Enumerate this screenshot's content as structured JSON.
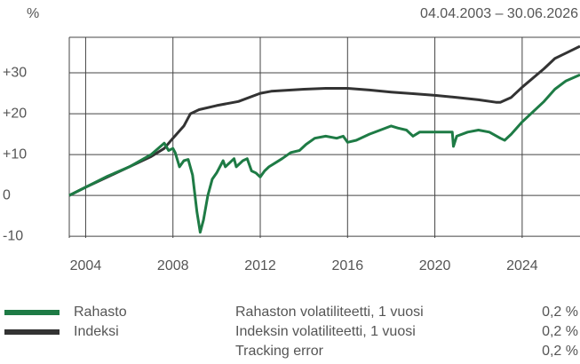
{
  "chart_data": {
    "type": "line",
    "unit_label": "%",
    "date_range": "04.04.2003 – 30.06.2026",
    "xlim": [
      2003.25,
      2026.65
    ],
    "xticks": [
      2004,
      2008,
      2012,
      2016,
      2020,
      2024
    ],
    "ylim": [
      -10.4,
      38.7
    ],
    "yticks": [
      {
        "value": 30,
        "label": "+30"
      },
      {
        "value": 20,
        "label": "+20"
      },
      {
        "value": 10,
        "label": "+10"
      },
      0,
      -10
    ],
    "grid": true,
    "series": [
      {
        "name": "Rahasto",
        "color": "#1e7b45",
        "x": [
          2003.25,
          2004,
          2005,
          2006,
          2007,
          2007.6,
          2007.8,
          2008,
          2008.1,
          2008.3,
          2008.5,
          2008.7,
          2008.9,
          2009.1,
          2009.25,
          2009.4,
          2009.6,
          2009.8,
          2010,
          2010.3,
          2010.4,
          2010.6,
          2010.8,
          2010.9,
          2011.2,
          2011.4,
          2011.6,
          2011.8,
          2012,
          2012.2,
          2012.4,
          2012.7,
          2013,
          2013.4,
          2013.8,
          2014.1,
          2014.5,
          2015,
          2015.5,
          2015.8,
          2016,
          2016.4,
          2017,
          2017.5,
          2018,
          2018.3,
          2018.7,
          2019,
          2019.3,
          2020,
          2020.8,
          2020.85,
          2021,
          2021.5,
          2022,
          2022.5,
          2023,
          2023.2,
          2023.5,
          2024,
          2025,
          2025.5,
          2026,
          2026.65
        ],
        "values": [
          0,
          2,
          4.7,
          7,
          10,
          12.8,
          11,
          11.5,
          10.5,
          7,
          8.5,
          8.8,
          5,
          -4,
          -9,
          -6,
          0,
          4,
          5.5,
          8.5,
          7,
          8,
          9,
          7,
          8.5,
          9,
          6,
          5.5,
          4.5,
          6,
          7,
          8,
          9,
          10.5,
          11,
          12.5,
          14,
          14.5,
          14,
          14.5,
          13,
          13.5,
          15,
          16,
          17,
          16.5,
          16,
          14.5,
          15.5,
          15.5,
          15.5,
          12,
          14.5,
          15.5,
          16,
          15.5,
          14,
          13.5,
          15,
          18,
          23,
          26,
          28,
          29.5
        ]
      },
      {
        "name": "Indeksi",
        "color": "#333333",
        "x": [
          2003.25,
          2004,
          2005,
          2006,
          2007,
          2007.6,
          2008,
          2008.5,
          2008.8,
          2009.2,
          2010,
          2011,
          2012,
          2012.5,
          2014,
          2015,
          2016,
          2017,
          2018,
          2019,
          2020,
          2021,
          2022,
          2022.8,
          2023,
          2023.5,
          2024,
          2025,
          2025.5,
          2026.65
        ],
        "values": [
          0,
          2,
          4.5,
          7,
          9.5,
          11.5,
          14,
          17,
          20,
          21,
          22,
          23,
          25,
          25.5,
          26,
          26.2,
          26.2,
          25.8,
          25.3,
          24.9,
          24.5,
          24,
          23.4,
          22.8,
          22.8,
          24,
          26.5,
          31,
          33.5,
          36.5
        ]
      }
    ]
  },
  "stats": [
    {
      "label": "Rahaston volatiliteetti, 1 vuosi",
      "value": "0,2 %"
    },
    {
      "label": "Indeksin volatiliteetti, 1 vuosi",
      "value": "0,2 %"
    },
    {
      "label": "Tracking error",
      "value": "0,2 %"
    }
  ]
}
